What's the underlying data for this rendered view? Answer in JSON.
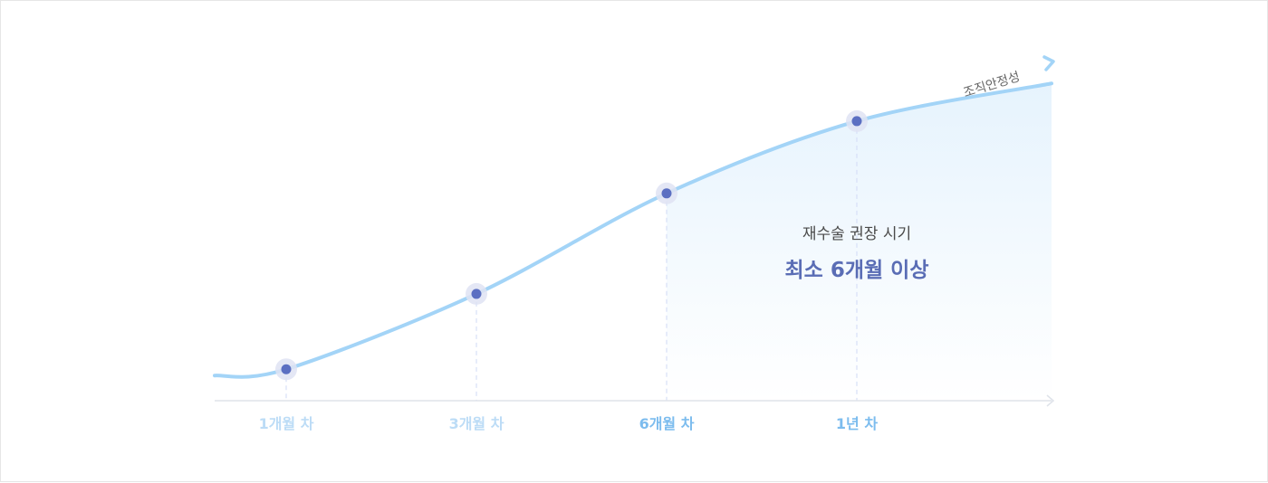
{
  "chart_data": {
    "type": "line",
    "categories": [
      "1개월 차",
      "3개월 차",
      "6개월 차",
      "1년 차"
    ],
    "values": [
      1,
      3.4,
      6.6,
      8.9
    ],
    "curve_label": "조직안정성",
    "annotation": {
      "subtitle": "재수술 권장 시기",
      "title": "최소 6개월 이상"
    },
    "highlight_from_category": "6개월 차",
    "ylim": [
      0,
      11
    ],
    "grid": false
  },
  "colors": {
    "line": "#a3d4f7",
    "point": "#5b6fc2",
    "point_halo": "#dfe3f3",
    "axis": "#dfe3ea",
    "guide": "#d7dff7",
    "label_muted": "#bcdcf6",
    "label_active": "#7cbcee",
    "area_top": "#e6f3fd",
    "area_bottom": "#ffffff",
    "callout_accent": "#5a6db5"
  }
}
